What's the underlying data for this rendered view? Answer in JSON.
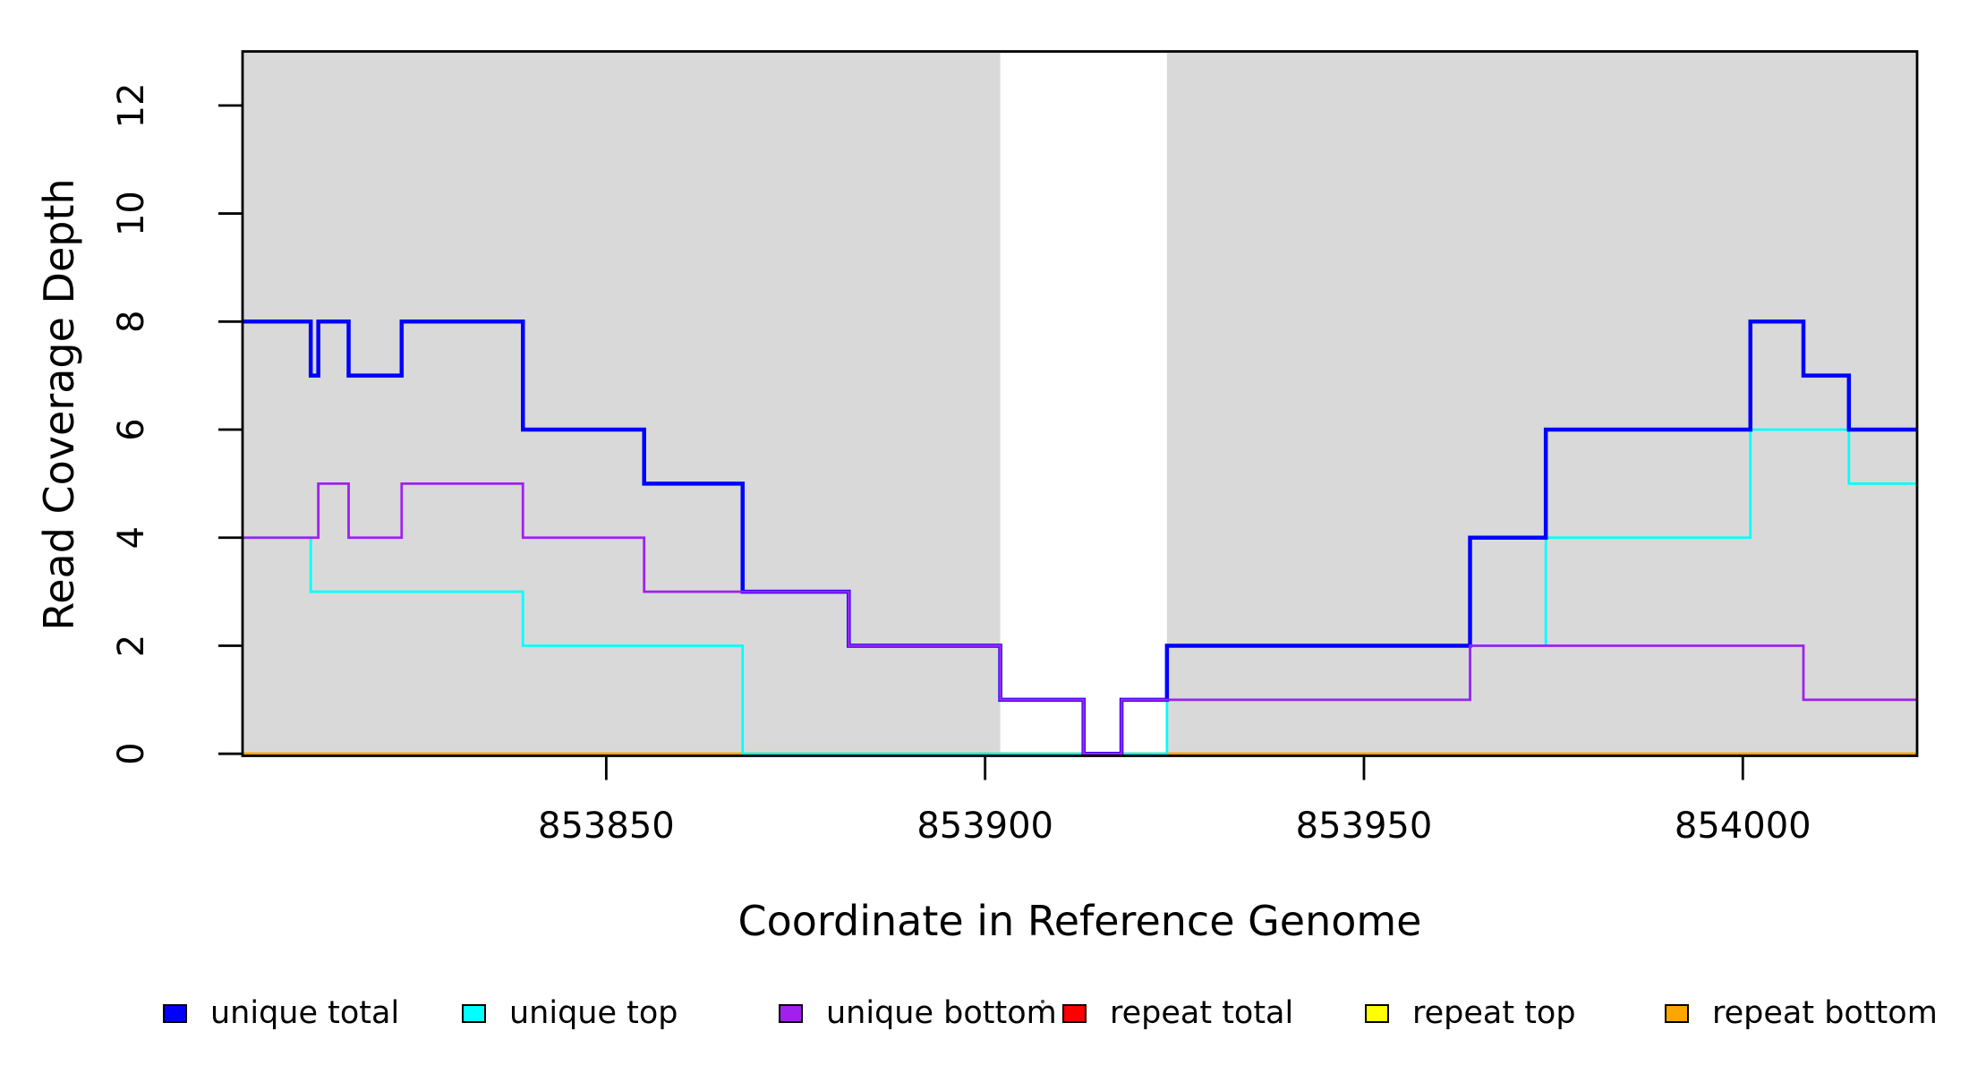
{
  "page": {
    "background": "#ffffff"
  },
  "chart_data": {
    "type": "line",
    "step": true,
    "title": "",
    "xlabel": "Coordinate in Reference Genome",
    "ylabel": "Read Coverage Depth",
    "xlim": [
      853802,
      854023
    ],
    "ylim": [
      0,
      13
    ],
    "grid": false,
    "plot_background": "#ffffff",
    "shaded_band_color": "#d9d9d9",
    "shaded_regions": [
      {
        "from": 853802,
        "to": 853902
      },
      {
        "from": 853924,
        "to": 854023
      }
    ],
    "x_ticks": [
      {
        "label": "853850",
        "value": 853850
      },
      {
        "label": "853900",
        "value": 853900
      },
      {
        "label": "853950",
        "value": 853950
      },
      {
        "label": "854000",
        "value": 854000
      }
    ],
    "y_ticks": [
      {
        "label": "0",
        "value": 0
      },
      {
        "label": "2",
        "value": 2
      },
      {
        "label": "4",
        "value": 4
      },
      {
        "label": "6",
        "value": 6
      },
      {
        "label": "8",
        "value": 8
      },
      {
        "label": "10",
        "value": 10
      },
      {
        "label": "12",
        "value": 12
      }
    ],
    "draw_order": [
      "repeat total",
      "repeat top",
      "repeat bottom",
      "unique top",
      "unique total",
      "unique bottom"
    ],
    "series": [
      {
        "name": "unique total",
        "color": "#0000ff",
        "width": 4.5,
        "points": [
          [
            853802,
            8
          ],
          [
            853811,
            8
          ],
          [
            853811,
            7
          ],
          [
            853812,
            7
          ],
          [
            853812,
            8
          ],
          [
            853816,
            8
          ],
          [
            853816,
            7
          ],
          [
            853823,
            7
          ],
          [
            853823,
            8
          ],
          [
            853839,
            8
          ],
          [
            853839,
            6
          ],
          [
            853855,
            6
          ],
          [
            853855,
            5
          ],
          [
            853868,
            5
          ],
          [
            853868,
            3
          ],
          [
            853882,
            3
          ],
          [
            853882,
            2
          ],
          [
            853902,
            2
          ],
          [
            853902,
            1
          ],
          [
            853913,
            1
          ],
          [
            853913,
            0
          ],
          [
            853918,
            0
          ],
          [
            853918,
            1
          ],
          [
            853924,
            1
          ],
          [
            853924,
            2
          ],
          [
            853964,
            2
          ],
          [
            853964,
            4
          ],
          [
            853974,
            4
          ],
          [
            853974,
            6
          ],
          [
            854001,
            6
          ],
          [
            854001,
            8
          ],
          [
            854008,
            8
          ],
          [
            854008,
            7
          ],
          [
            854014,
            7
          ],
          [
            854014,
            6
          ],
          [
            854023,
            6
          ]
        ]
      },
      {
        "name": "unique top",
        "color": "#00ffff",
        "width": 2.8,
        "points": [
          [
            853802,
            4
          ],
          [
            853811,
            4
          ],
          [
            853811,
            3
          ],
          [
            853839,
            3
          ],
          [
            853839,
            2
          ],
          [
            853868,
            2
          ],
          [
            853868,
            0
          ],
          [
            853924,
            0
          ],
          [
            853924,
            1
          ],
          [
            853964,
            1
          ],
          [
            853964,
            2
          ],
          [
            853974,
            2
          ],
          [
            853974,
            4
          ],
          [
            854001,
            4
          ],
          [
            854001,
            6
          ],
          [
            854014,
            6
          ],
          [
            854014,
            5
          ],
          [
            854023,
            5
          ]
        ]
      },
      {
        "name": "unique bottom",
        "color": "#a020f0",
        "width": 2.8,
        "points": [
          [
            853802,
            4
          ],
          [
            853812,
            4
          ],
          [
            853812,
            5
          ],
          [
            853816,
            5
          ],
          [
            853816,
            4
          ],
          [
            853823,
            4
          ],
          [
            853823,
            5
          ],
          [
            853839,
            5
          ],
          [
            853839,
            4
          ],
          [
            853855,
            4
          ],
          [
            853855,
            3
          ],
          [
            853882,
            3
          ],
          [
            853882,
            2
          ],
          [
            853902,
            2
          ],
          [
            853902,
            1
          ],
          [
            853913,
            1
          ],
          [
            853913,
            0
          ],
          [
            853918,
            0
          ],
          [
            853918,
            1
          ],
          [
            853964,
            1
          ],
          [
            853964,
            2
          ],
          [
            854008,
            2
          ],
          [
            854008,
            1
          ],
          [
            854023,
            1
          ]
        ]
      },
      {
        "name": "repeat total",
        "color": "#ff0000",
        "width": 2.8,
        "points": [
          [
            853802,
            0
          ],
          [
            854023,
            0
          ]
        ]
      },
      {
        "name": "repeat top",
        "color": "#ffff00",
        "width": 2.8,
        "points": [
          [
            853802,
            0
          ],
          [
            854023,
            0
          ]
        ]
      },
      {
        "name": "repeat bottom",
        "color": "#ffa500",
        "width": 2.8,
        "points": [
          [
            853802,
            0
          ],
          [
            854023,
            0
          ]
        ]
      }
    ]
  },
  "legend": {
    "items": [
      {
        "label": "unique total",
        "color": "#0000ff"
      },
      {
        "label": "unique top",
        "color": "#00ffff"
      },
      {
        "label": "unique bottom",
        "color": "#a020f0"
      },
      {
        "label": "repeat total",
        "color": "#ff0000"
      },
      {
        "label": "repeat top",
        "color": "#ffff00"
      },
      {
        "label": "repeat bottom",
        "color": "#ffa500"
      }
    ],
    "stray_mark": "."
  }
}
